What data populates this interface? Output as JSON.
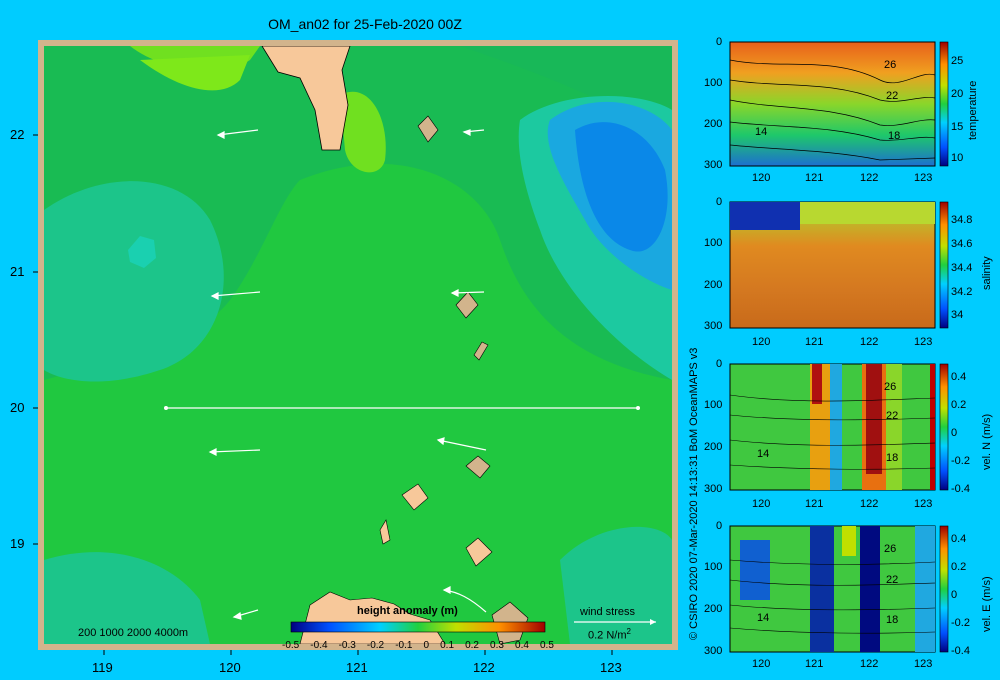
{
  "title": "OM_an02 for 25-Feb-2020 00Z",
  "map": {
    "lon_ticks": [
      "119",
      "120",
      "121",
      "122",
      "123"
    ],
    "lat_ticks": [
      "22",
      "21",
      "20",
      "19"
    ],
    "depth_legend": "200  1000  2000  4000m",
    "colorbar_title": "height anomaly  (m)",
    "colorbar_ticks": [
      "-0.5",
      "-0.4",
      "-0.3",
      "-0.2",
      "-0.1",
      "0",
      "0.1",
      "0.2",
      "0.3",
      "0.4",
      "0.5"
    ],
    "wind_label": "wind stress",
    "wind_scale": "0.2 N/m",
    "wind_scale_sup": "2"
  },
  "credit": "© CSIRO 2020   07-Mar-2020 14:13:31 BoM OceanMAPS v3",
  "sections": [
    {
      "id": "temperature",
      "label": "temperature",
      "y_ticks": [
        "0",
        "100",
        "200",
        "300"
      ],
      "x_ticks": [
        "120",
        "121",
        "122",
        "123"
      ],
      "cb_ticks": [
        "25",
        "20",
        "15",
        "10"
      ],
      "contour_labels": [
        "26",
        "22",
        "18",
        "14"
      ]
    },
    {
      "id": "salinity",
      "label": "salinity",
      "y_ticks": [
        "0",
        "100",
        "200",
        "300"
      ],
      "x_ticks": [
        "120",
        "121",
        "122",
        "123"
      ],
      "cb_ticks": [
        "34.8",
        "34.6",
        "34.4",
        "34.2",
        "34"
      ],
      "contour_labels": []
    },
    {
      "id": "vel-n",
      "label": "vel. N  (m/s)",
      "y_ticks": [
        "0",
        "100",
        "200",
        "300"
      ],
      "x_ticks": [
        "120",
        "121",
        "122",
        "123"
      ],
      "cb_ticks": [
        "0.4",
        "0.2",
        "0",
        "-0.2",
        "-0.4"
      ],
      "contour_labels": [
        "26",
        "22",
        "18",
        "14"
      ]
    },
    {
      "id": "vel-e",
      "label": "vel. E  (m/s)",
      "y_ticks": [
        "0",
        "100",
        "200",
        "300"
      ],
      "x_ticks": [
        "120",
        "121",
        "122",
        "123"
      ],
      "cb_ticks": [
        "0.4",
        "0.2",
        "0",
        "-0.2",
        "-0.4"
      ],
      "contour_labels": [
        "26",
        "22",
        "18",
        "14"
      ]
    }
  ]
}
